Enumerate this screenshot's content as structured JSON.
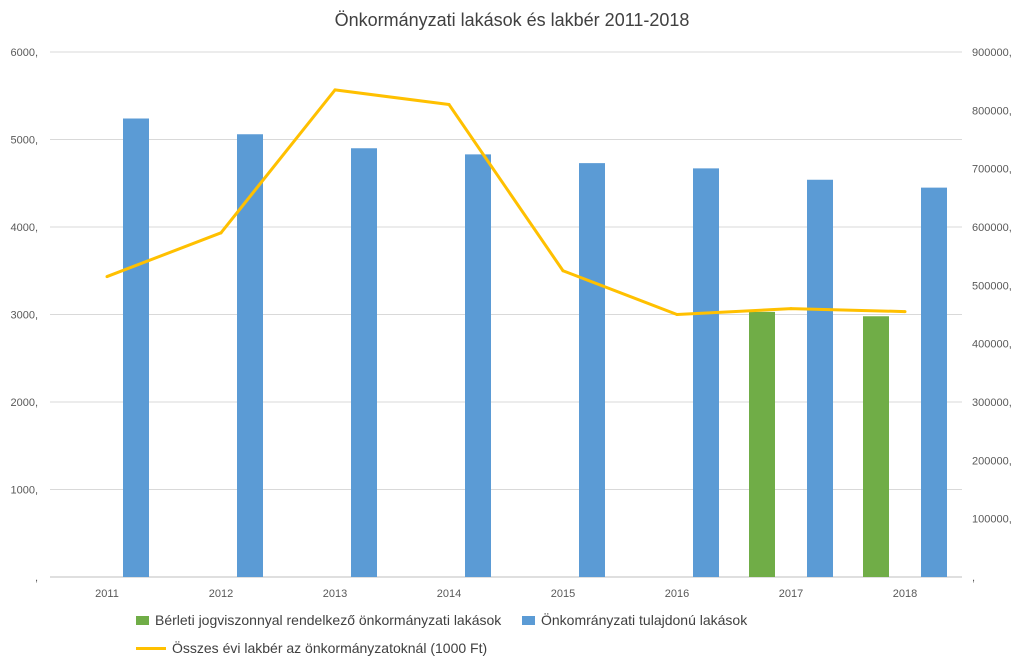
{
  "chart_data": {
    "type": "bar",
    "title": "Önkormányzati lakások és lakbér 2011-2018",
    "categories": [
      "2011",
      "2012",
      "2013",
      "2014",
      "2015",
      "2016",
      "2017",
      "2018"
    ],
    "series": [
      {
        "name": "Bérleti jogviszonnyal rendelkező önkormányzati lakások",
        "type": "bar",
        "axis": "left",
        "color": "#70ad47",
        "values": [
          null,
          null,
          null,
          null,
          null,
          null,
          3030,
          2980
        ]
      },
      {
        "name": "Önkomrányzati tulajdonú lakások",
        "type": "bar",
        "axis": "left",
        "color": "#5b9bd5",
        "values": [
          5240,
          5060,
          4900,
          4830,
          4730,
          4670,
          4540,
          4450
        ]
      },
      {
        "name": "Összes évi lakbér az önkormányzatoknál (1000 Ft)",
        "type": "line",
        "axis": "right",
        "color": "#ffc000",
        "values": [
          515000,
          590000,
          835000,
          810000,
          525000,
          450000,
          460000,
          455000
        ]
      }
    ],
    "y_left": {
      "lim": [
        0,
        6000
      ],
      "ticks": [
        ",",
        "1000,",
        "2000,",
        "3000,",
        "4000,",
        "5000,",
        "6000,"
      ]
    },
    "y_right": {
      "lim": [
        0,
        900000
      ],
      "ticks": [
        ",",
        "100000,",
        "200000,",
        "300000,",
        "400000,",
        "500000,",
        "600000,",
        "700000,",
        "800000,",
        "900000,"
      ]
    },
    "grid": true,
    "legend_position": "bottom"
  }
}
